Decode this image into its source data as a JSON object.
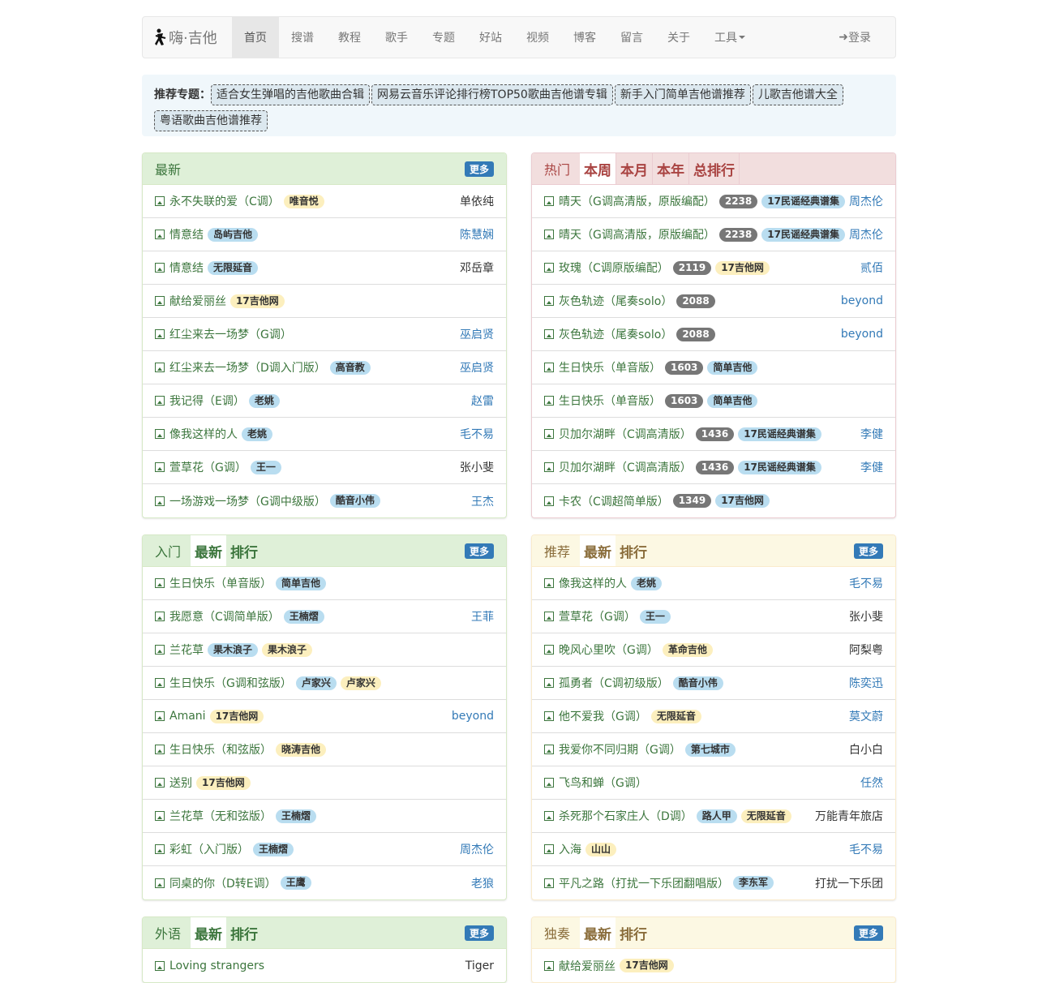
{
  "brand": "嗨·吉他",
  "nav": [
    "首页",
    "搜谱",
    "教程",
    "歌手",
    "专题",
    "好站",
    "视频",
    "博客",
    "留言",
    "关于",
    "工具"
  ],
  "login": "登录",
  "topics": {
    "label": "推荐专题：",
    "items": [
      "适合女生弹唱的吉他歌曲合辑",
      "网易云音乐评论排行榜TOP50歌曲吉他谱专辑",
      "新手入门简单吉他谱推荐",
      "儿歌吉他谱大全",
      "粤语歌曲吉他谱推荐"
    ]
  },
  "colors": {
    "primary": "#337ab7",
    "success_bg": "#dff0d8",
    "danger_bg": "#f2dede",
    "warning_bg": "#fcf8e3",
    "title": "#3c763d"
  },
  "panels": [
    {
      "title": "最新",
      "tabs": [],
      "more": "更多",
      "rows": [
        {
          "t": "永不失联的爱（C调）",
          "b": [
            [
              "唯音悦",
              "y"
            ]
          ],
          "a": "单依纯",
          "l": false
        },
        {
          "t": "情意结",
          "b": [
            [
              "岛屿吉他",
              "bl"
            ]
          ],
          "a": "陈慧娴",
          "l": true
        },
        {
          "t": "情意结",
          "b": [
            [
              "无限延音",
              "bl"
            ]
          ],
          "a": "邓岳章",
          "l": false
        },
        {
          "t": "献给爱丽丝",
          "b": [
            [
              "17吉他网",
              "y"
            ]
          ],
          "a": "",
          "l": false
        },
        {
          "t": "红尘来去一场梦（G调）",
          "b": [],
          "a": "巫启贤",
          "l": true
        },
        {
          "t": "红尘来去一场梦（D调入门版）",
          "b": [
            [
              "高音教",
              "bl"
            ]
          ],
          "a": "巫启贤",
          "l": true
        },
        {
          "t": "我记得（E调）",
          "b": [
            [
              "老姚",
              "bl"
            ]
          ],
          "a": "赵雷",
          "l": true
        },
        {
          "t": "像我这样的人",
          "b": [
            [
              "老姚",
              "bl"
            ]
          ],
          "a": "毛不易",
          "l": true
        },
        {
          "t": "萱草花（G调）",
          "b": [
            [
              "王一",
              "bl"
            ]
          ],
          "a": "张小斐",
          "l": false
        },
        {
          "t": "一场游戏一场梦（G调中级版）",
          "b": [
            [
              "酷音小伟",
              "bl"
            ]
          ],
          "a": "王杰",
          "l": true
        }
      ]
    },
    {
      "title": "热门",
      "tabs": [
        "本周",
        "本月",
        "本年",
        "总排行"
      ],
      "more": "",
      "rows": [
        {
          "t": "晴天（G调高清版，原版编配）",
          "b": [
            [
              "2238",
              "g"
            ],
            [
              "17民谣经典谱集",
              "bl"
            ]
          ],
          "a": "周杰伦",
          "l": true
        },
        {
          "t": "晴天（G调高清版，原版编配）",
          "b": [
            [
              "2238",
              "g"
            ],
            [
              "17民谣经典谱集",
              "bl"
            ]
          ],
          "a": "周杰伦",
          "l": true
        },
        {
          "t": "玫瑰（C调原版编配）",
          "b": [
            [
              "2119",
              "g"
            ],
            [
              "17吉他网",
              "y"
            ]
          ],
          "a": "贰佰",
          "l": true
        },
        {
          "t": "灰色轨迹（尾奏solo）",
          "b": [
            [
              "2088",
              "g"
            ]
          ],
          "a": "beyond",
          "l": true
        },
        {
          "t": "灰色轨迹（尾奏solo）",
          "b": [
            [
              "2088",
              "g"
            ]
          ],
          "a": "beyond",
          "l": true
        },
        {
          "t": "生日快乐（单音版）",
          "b": [
            [
              "1603",
              "g"
            ],
            [
              "简单吉他",
              "bl"
            ]
          ],
          "a": "",
          "l": false
        },
        {
          "t": "生日快乐（单音版）",
          "b": [
            [
              "1603",
              "g"
            ],
            [
              "简单吉他",
              "bl"
            ]
          ],
          "a": "",
          "l": false
        },
        {
          "t": "贝加尔湖畔（C调高清版）",
          "b": [
            [
              "1436",
              "g"
            ],
            [
              "17民谣经典谱集",
              "bl"
            ]
          ],
          "a": "李健",
          "l": true
        },
        {
          "t": "贝加尔湖畔（C调高清版）",
          "b": [
            [
              "1436",
              "g"
            ],
            [
              "17民谣经典谱集",
              "bl"
            ]
          ],
          "a": "李健",
          "l": true
        },
        {
          "t": "卡农（C调超简单版）",
          "b": [
            [
              "1349",
              "g"
            ],
            [
              "17吉他网",
              "bl"
            ]
          ],
          "a": "",
          "l": false
        }
      ]
    },
    {
      "title": "入门",
      "tabs": [
        "最新",
        "排行"
      ],
      "more": "更多",
      "rows": [
        {
          "t": "生日快乐（单音版）",
          "b": [
            [
              "简单吉他",
              "bl"
            ]
          ],
          "a": "",
          "l": false
        },
        {
          "t": "我愿意（C调简单版）",
          "b": [
            [
              "王楠熠",
              "bl"
            ]
          ],
          "a": "王菲",
          "l": true
        },
        {
          "t": "兰花草",
          "b": [
            [
              "果木浪子",
              "bl"
            ],
            [
              "果木浪子",
              "y"
            ]
          ],
          "a": "",
          "l": false
        },
        {
          "t": "生日快乐（G调和弦版）",
          "b": [
            [
              "卢家兴",
              "bl"
            ],
            [
              "卢家兴",
              "y"
            ]
          ],
          "a": "",
          "l": false
        },
        {
          "t": "Amani",
          "b": [
            [
              "17吉他网",
              "y"
            ]
          ],
          "a": "beyond",
          "l": true
        },
        {
          "t": "生日快乐（和弦版）",
          "b": [
            [
              "晓涛吉他",
              "y"
            ]
          ],
          "a": "",
          "l": false
        },
        {
          "t": "送别",
          "b": [
            [
              "17吉他网",
              "y"
            ]
          ],
          "a": "",
          "l": false
        },
        {
          "t": "兰花草（无和弦版）",
          "b": [
            [
              "王楠熠",
              "bl"
            ]
          ],
          "a": "",
          "l": false
        },
        {
          "t": "彩虹（入门版）",
          "b": [
            [
              "王楠熠",
              "bl"
            ]
          ],
          "a": "周杰伦",
          "l": true
        },
        {
          "t": "同桌的你（D转E调）",
          "b": [
            [
              "王鹰",
              "bl"
            ]
          ],
          "a": "老狼",
          "l": true
        }
      ]
    },
    {
      "title": "推荐",
      "tabs": [
        "最新",
        "排行"
      ],
      "more": "更多",
      "rows": [
        {
          "t": "像我这样的人",
          "b": [
            [
              "老姚",
              "bl"
            ]
          ],
          "a": "毛不易",
          "l": true
        },
        {
          "t": "萱草花（G调）",
          "b": [
            [
              "王一",
              "bl"
            ]
          ],
          "a": "张小斐",
          "l": false
        },
        {
          "t": "晚风心里吹（G调）",
          "b": [
            [
              "革命吉他",
              "y"
            ]
          ],
          "a": "阿梨粤",
          "l": false
        },
        {
          "t": "孤勇者（C调初级版）",
          "b": [
            [
              "酷音小伟",
              "bl"
            ]
          ],
          "a": "陈奕迅",
          "l": true
        },
        {
          "t": "他不爱我（G调）",
          "b": [
            [
              "无限延音",
              "y"
            ]
          ],
          "a": "莫文蔚",
          "l": true
        },
        {
          "t": "我爱你不同归期（G调）",
          "b": [
            [
              "第七城市",
              "bl"
            ]
          ],
          "a": "白小白",
          "l": false
        },
        {
          "t": "飞鸟和蝉（G调）",
          "b": [],
          "a": "任然",
          "l": true
        },
        {
          "t": "杀死那个石家庄人（D调）",
          "b": [
            [
              "路人甲",
              "bl"
            ],
            [
              "无限延音",
              "y"
            ]
          ],
          "a": "万能青年旅店",
          "l": false
        },
        {
          "t": "入海",
          "b": [
            [
              "山山",
              "y"
            ]
          ],
          "a": "毛不易",
          "l": true
        },
        {
          "t": "平凡之路（打扰一下乐团翻唱版）",
          "b": [
            [
              "李东军",
              "bl"
            ]
          ],
          "a": "打扰一下乐团",
          "l": false
        }
      ]
    },
    {
      "title": "外语",
      "tabs": [
        "最新",
        "排行"
      ],
      "more": "更多",
      "rows": [
        {
          "t": "Loving strangers",
          "b": [],
          "a": "Tiger",
          "l": false
        }
      ]
    },
    {
      "title": "独奏",
      "tabs": [
        "最新",
        "排行"
      ],
      "more": "更多",
      "rows": [
        {
          "t": "献给爱丽丝",
          "b": [
            [
              "17吉他网",
              "y"
            ]
          ],
          "a": "",
          "l": false
        }
      ]
    }
  ]
}
